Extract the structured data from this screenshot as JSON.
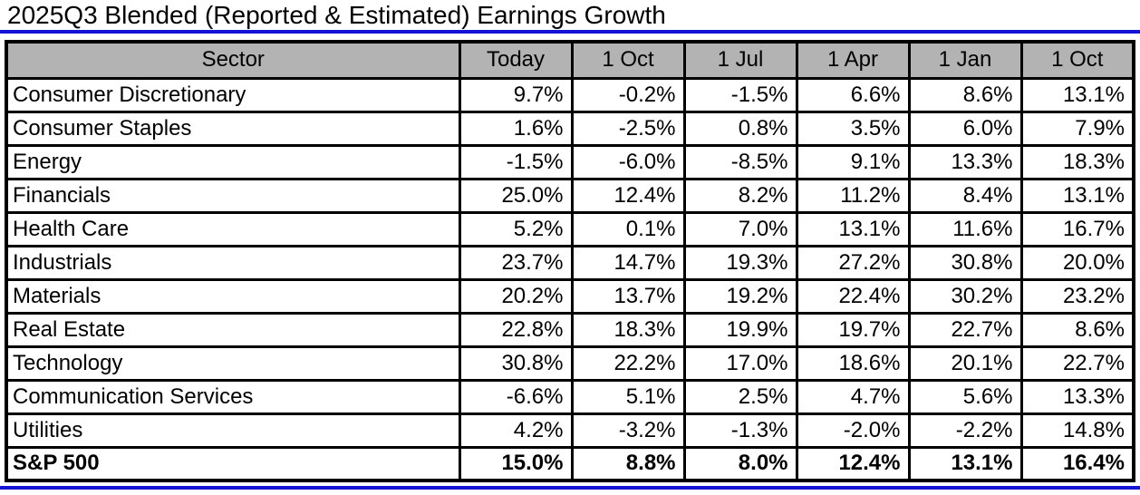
{
  "title": "2025Q3 Blended (Reported & Estimated) Earnings Growth",
  "colors": {
    "accent_blue": "#1414d6",
    "header_gray": "#b3b3b3",
    "border_black": "#000000"
  },
  "chart_data": {
    "type": "table",
    "title": "2025Q3 Blended (Reported & Estimated) Earnings Growth",
    "columns": [
      "Sector",
      "Today",
      "1 Oct",
      "1 Jul",
      "1 Apr",
      "1 Jan",
      "1 Oct"
    ],
    "rows": [
      {
        "sector": "Consumer Discretionary",
        "values": [
          "9.7%",
          "-0.2%",
          "-1.5%",
          "6.6%",
          "8.6%",
          "13.1%"
        ],
        "bold": false
      },
      {
        "sector": "Consumer Staples",
        "values": [
          "1.6%",
          "-2.5%",
          "0.8%",
          "3.5%",
          "6.0%",
          "7.9%"
        ],
        "bold": false
      },
      {
        "sector": "Energy",
        "values": [
          "-1.5%",
          "-6.0%",
          "-8.5%",
          "9.1%",
          "13.3%",
          "18.3%"
        ],
        "bold": false
      },
      {
        "sector": "Financials",
        "values": [
          "25.0%",
          "12.4%",
          "8.2%",
          "11.2%",
          "8.4%",
          "13.1%"
        ],
        "bold": false
      },
      {
        "sector": "Health Care",
        "values": [
          "5.2%",
          "0.1%",
          "7.0%",
          "13.1%",
          "11.6%",
          "16.7%"
        ],
        "bold": false
      },
      {
        "sector": "Industrials",
        "values": [
          "23.7%",
          "14.7%",
          "19.3%",
          "27.2%",
          "30.8%",
          "20.0%"
        ],
        "bold": false
      },
      {
        "sector": "Materials",
        "values": [
          "20.2%",
          "13.7%",
          "19.2%",
          "22.4%",
          "30.2%",
          "23.2%"
        ],
        "bold": false
      },
      {
        "sector": "Real Estate",
        "values": [
          "22.8%",
          "18.3%",
          "19.9%",
          "19.7%",
          "22.7%",
          "8.6%"
        ],
        "bold": false
      },
      {
        "sector": "Technology",
        "values": [
          "30.8%",
          "22.2%",
          "17.0%",
          "18.6%",
          "20.1%",
          "22.7%"
        ],
        "bold": false
      },
      {
        "sector": "Communication Services",
        "values": [
          "-6.6%",
          "5.1%",
          "2.5%",
          "4.7%",
          "5.6%",
          "13.3%"
        ],
        "bold": false
      },
      {
        "sector": "Utilities",
        "values": [
          "4.2%",
          "-3.2%",
          "-1.3%",
          "-2.0%",
          "-2.2%",
          "14.8%"
        ],
        "bold": false
      },
      {
        "sector": "S&P 500",
        "values": [
          "15.0%",
          "8.8%",
          "8.0%",
          "12.4%",
          "13.1%",
          "16.4%"
        ],
        "bold": true
      }
    ]
  }
}
